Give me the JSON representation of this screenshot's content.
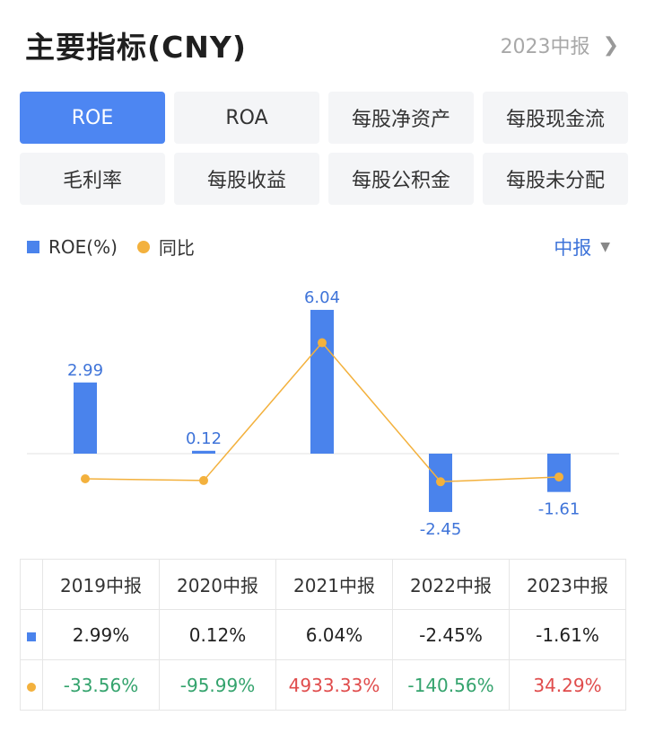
{
  "header": {
    "title": "主要指标(CNY)",
    "period": "2023中报"
  },
  "tabs": [
    "ROE",
    "ROA",
    "每股净资产",
    "每股现金流",
    "毛利率",
    "每股收益",
    "每股公积金",
    "每股未分配"
  ],
  "active_tab": "ROE",
  "legend": {
    "series1": "ROE(%)",
    "series2": "同比"
  },
  "period_select": "中报",
  "colors": {
    "bar": "#4a83ec",
    "line": "#f3b13d",
    "accent": "#4d86f2",
    "negative": "#34a36d",
    "positive": "#e04c4c"
  },
  "chart_data": {
    "type": "bar",
    "categories": [
      "2019中报",
      "2020中报",
      "2021中报",
      "2022中报",
      "2023中报"
    ],
    "series": [
      {
        "name": "ROE(%)",
        "type": "bar",
        "values": [
          2.99,
          0.12,
          6.04,
          -2.45,
          -1.61
        ],
        "labels": [
          "2.99",
          "0.12",
          "6.04",
          "-2.45",
          "-1.61"
        ]
      },
      {
        "name": "同比",
        "type": "line",
        "values": [
          -33.56,
          -95.99,
          4933.33,
          -140.56,
          34.29
        ]
      }
    ],
    "grid": false,
    "legend": "top-left"
  },
  "table": {
    "headers": [
      "2019中报",
      "2020中报",
      "2021中报",
      "2022中报",
      "2023中报"
    ],
    "roe": [
      "2.99%",
      "0.12%",
      "6.04%",
      "-2.45%",
      "-1.61%"
    ],
    "yoy": [
      "-33.56%",
      "-95.99%",
      "4933.33%",
      "-140.56%",
      "34.29%"
    ]
  }
}
